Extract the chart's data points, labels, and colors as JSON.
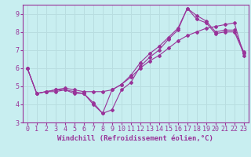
{
  "xlabel": "Windchill (Refroidissement éolien,°C)",
  "bg_color": "#c8eef0",
  "line_color": "#993399",
  "grid_color": "#b8dde0",
  "xlim": [
    -0.5,
    23.5
  ],
  "ylim": [
    3,
    9.5
  ],
  "yticks": [
    3,
    4,
    5,
    6,
    7,
    8,
    9
  ],
  "xticks": [
    0,
    1,
    2,
    3,
    4,
    5,
    6,
    7,
    8,
    9,
    10,
    11,
    12,
    13,
    14,
    15,
    16,
    17,
    18,
    19,
    20,
    21,
    22,
    23
  ],
  "line1_x": [
    0,
    1,
    2,
    3,
    4,
    5,
    6,
    7,
    8,
    9,
    10,
    11,
    12,
    13,
    14,
    15,
    16,
    17,
    18,
    19,
    20,
    21,
    22,
    23
  ],
  "line1_y": [
    6.0,
    4.6,
    4.7,
    4.7,
    4.8,
    4.6,
    4.6,
    4.1,
    3.5,
    3.7,
    4.8,
    5.2,
    6.1,
    6.6,
    7.0,
    7.6,
    8.1,
    9.3,
    8.9,
    8.6,
    8.0,
    8.1,
    8.1,
    6.9
  ],
  "line2_x": [
    0,
    1,
    2,
    3,
    4,
    5,
    6,
    7,
    8,
    9,
    10,
    11,
    12,
    13,
    14,
    15,
    16,
    17,
    18,
    19,
    20,
    21,
    22,
    23
  ],
  "line2_y": [
    6.0,
    4.6,
    4.7,
    4.8,
    4.8,
    4.7,
    4.6,
    4.0,
    3.5,
    4.8,
    5.1,
    5.6,
    6.3,
    6.8,
    7.2,
    7.7,
    8.2,
    9.3,
    8.7,
    8.5,
    7.9,
    8.0,
    8.0,
    6.8
  ],
  "line3_x": [
    0,
    1,
    2,
    3,
    4,
    5,
    6,
    7,
    8,
    9,
    10,
    11,
    12,
    13,
    14,
    15,
    16,
    17,
    18,
    19,
    20,
    21,
    22,
    23
  ],
  "line3_y": [
    6.0,
    4.6,
    4.7,
    4.8,
    4.9,
    4.8,
    4.7,
    4.7,
    4.7,
    4.8,
    5.1,
    5.5,
    6.0,
    6.4,
    6.7,
    7.1,
    7.5,
    7.8,
    8.0,
    8.2,
    8.3,
    8.4,
    8.5,
    6.7
  ],
  "xlabel_fontsize": 6.5,
  "tick_fontsize": 6.0
}
